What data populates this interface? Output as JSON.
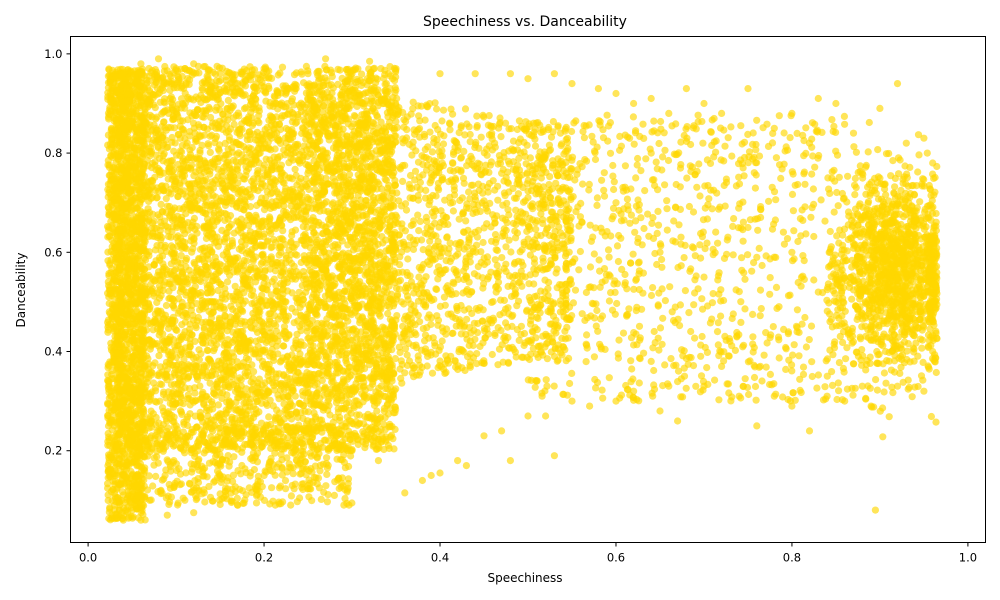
{
  "chart_data": {
    "type": "scatter",
    "title": "Speechiness vs. Danceability",
    "xlabel": "Speechiness",
    "ylabel": "Danceability",
    "xlim": [
      -0.02,
      1.02
    ],
    "ylim": [
      0.015,
      1.035
    ],
    "xticks": [
      "0.0",
      "0.2",
      "0.4",
      "0.6",
      "0.8",
      "1.0"
    ],
    "yticks": [
      "0.2",
      "0.4",
      "0.6",
      "0.8",
      "1.0"
    ],
    "grid": false,
    "color": "#FFD700",
    "point_alpha": 0.65,
    "series": [
      {
        "points": [
          [
            0.04,
            0.06
          ],
          [
            0.06,
            0.06
          ],
          [
            0.05,
            0.08
          ],
          [
            0.07,
            0.1
          ],
          [
            0.05,
            0.15
          ],
          [
            0.06,
            0.2
          ],
          [
            0.04,
            0.3
          ],
          [
            0.03,
            0.45
          ],
          [
            0.03,
            0.6
          ],
          [
            0.03,
            0.7
          ],
          [
            0.04,
            0.85
          ],
          [
            0.04,
            0.96
          ],
          [
            0.06,
            0.98
          ],
          [
            0.08,
            0.99
          ],
          [
            0.1,
            0.97
          ],
          [
            0.12,
            0.98
          ],
          [
            0.15,
            0.96
          ],
          [
            0.2,
            0.97
          ],
          [
            0.25,
            0.96
          ],
          [
            0.27,
            0.99
          ],
          [
            0.3,
            0.96
          ],
          [
            0.32,
            0.985
          ],
          [
            0.35,
            0.97
          ],
          [
            0.4,
            0.96
          ],
          [
            0.44,
            0.96
          ],
          [
            0.48,
            0.96
          ],
          [
            0.5,
            0.95
          ],
          [
            0.53,
            0.96
          ],
          [
            0.12,
            0.12
          ],
          [
            0.15,
            0.15
          ],
          [
            0.17,
            0.09
          ],
          [
            0.09,
            0.07
          ],
          [
            0.11,
            0.1
          ],
          [
            0.12,
            0.075
          ],
          [
            0.2,
            0.15
          ],
          [
            0.25,
            0.13
          ],
          [
            0.28,
            0.11
          ],
          [
            0.3,
            0.2
          ],
          [
            0.33,
            0.18
          ],
          [
            0.36,
            0.115
          ],
          [
            0.38,
            0.14
          ],
          [
            0.39,
            0.15
          ],
          [
            0.4,
            0.155
          ],
          [
            0.42,
            0.18
          ],
          [
            0.43,
            0.17
          ],
          [
            0.45,
            0.23
          ],
          [
            0.47,
            0.24
          ],
          [
            0.48,
            0.18
          ],
          [
            0.5,
            0.27
          ],
          [
            0.52,
            0.27
          ],
          [
            0.53,
            0.19
          ],
          [
            0.55,
            0.3
          ],
          [
            0.57,
            0.29
          ],
          [
            0.6,
            0.3
          ],
          [
            0.62,
            0.32
          ],
          [
            0.64,
            0.38
          ],
          [
            0.65,
            0.28
          ],
          [
            0.66,
            0.33
          ],
          [
            0.67,
            0.26
          ],
          [
            0.7,
            0.33
          ],
          [
            0.72,
            0.37
          ],
          [
            0.74,
            0.31
          ],
          [
            0.76,
            0.25
          ],
          [
            0.78,
            0.31
          ],
          [
            0.8,
            0.29
          ],
          [
            0.82,
            0.24
          ],
          [
            0.84,
            0.31
          ],
          [
            0.86,
            0.3
          ],
          [
            0.88,
            0.33
          ],
          [
            0.89,
            0.29
          ],
          [
            0.92,
            0.33
          ],
          [
            0.95,
            0.32
          ],
          [
            0.55,
            0.94
          ],
          [
            0.58,
            0.93
          ],
          [
            0.6,
            0.92
          ],
          [
            0.62,
            0.9
          ],
          [
            0.64,
            0.91
          ],
          [
            0.66,
            0.88
          ],
          [
            0.68,
            0.93
          ],
          [
            0.7,
            0.9
          ],
          [
            0.72,
            0.88
          ],
          [
            0.75,
            0.93
          ],
          [
            0.78,
            0.85
          ],
          [
            0.8,
            0.88
          ],
          [
            0.82,
            0.82
          ],
          [
            0.83,
            0.91
          ],
          [
            0.85,
            0.9
          ],
          [
            0.87,
            0.84
          ],
          [
            0.9,
            0.89
          ],
          [
            0.92,
            0.94
          ],
          [
            0.93,
            0.82
          ],
          [
            0.95,
            0.83
          ],
          [
            0.96,
            0.78
          ],
          [
            0.96,
            0.4
          ],
          [
            0.65,
            0.6
          ],
          [
            0.7,
            0.55
          ],
          [
            0.75,
            0.65
          ],
          [
            0.8,
            0.6
          ],
          [
            0.85,
            0.5
          ],
          [
            0.9,
            0.55
          ],
          [
            0.95,
            0.6
          ],
          [
            0.6,
            0.7
          ]
        ]
      }
    ],
    "regions": [
      {
        "kind": "dense",
        "xmin": 0.022,
        "xmax": 0.065,
        "ymin": 0.06,
        "ymax": 0.97,
        "n": 1500
      },
      {
        "kind": "dense",
        "xmin": 0.03,
        "xmax": 0.35,
        "ymin": 0.2,
        "ymax": 0.975,
        "n": 5200
      },
      {
        "kind": "taper",
        "xmin": 0.25,
        "xmax": 0.55,
        "ymin": 0.3,
        "ymax": 0.95,
        "n": 1800
      },
      {
        "kind": "sparse",
        "xmin": 0.5,
        "xmax": 0.86,
        "ymin": 0.3,
        "ymax": 0.88,
        "n": 900
      },
      {
        "kind": "cluster",
        "cx": 0.915,
        "cy": 0.56,
        "sx": 0.035,
        "sy": 0.1,
        "xmax": 0.965,
        "n": 1400
      },
      {
        "kind": "sparse",
        "xmin": 0.04,
        "xmax": 0.3,
        "ymin": 0.09,
        "ymax": 0.25,
        "n": 500
      }
    ]
  }
}
